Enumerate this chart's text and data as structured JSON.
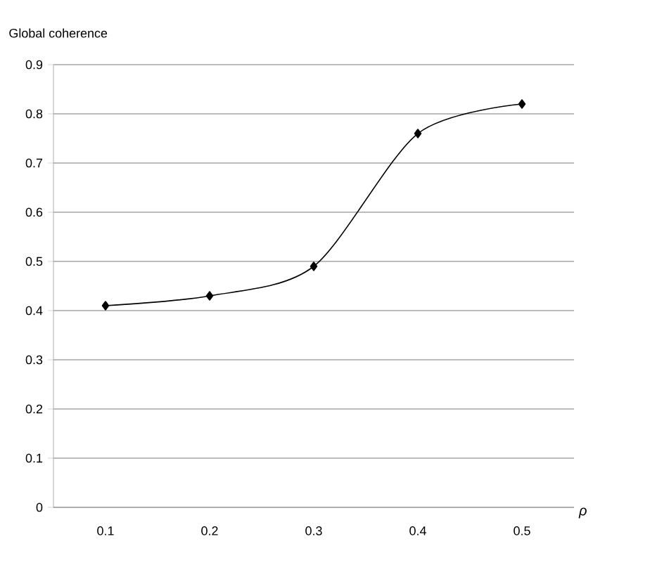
{
  "chart_data": {
    "type": "line",
    "ylabel": "Global coherence",
    "xlabel": "ρ",
    "categories": [
      "0.1",
      "0.2",
      "0.3",
      "0.4",
      "0.5"
    ],
    "series": [
      {
        "color": "#000000",
        "values": [
          0.41,
          0.43,
          0.49,
          0.76,
          0.82
        ]
      }
    ],
    "ylim": [
      0,
      0.9
    ],
    "yticks": [
      0,
      0.1,
      0.2,
      0.3,
      0.4,
      0.5,
      0.6,
      0.7,
      0.8,
      0.9
    ],
    "grid": "y",
    "marker": "diamond",
    "line_style": "solid"
  }
}
